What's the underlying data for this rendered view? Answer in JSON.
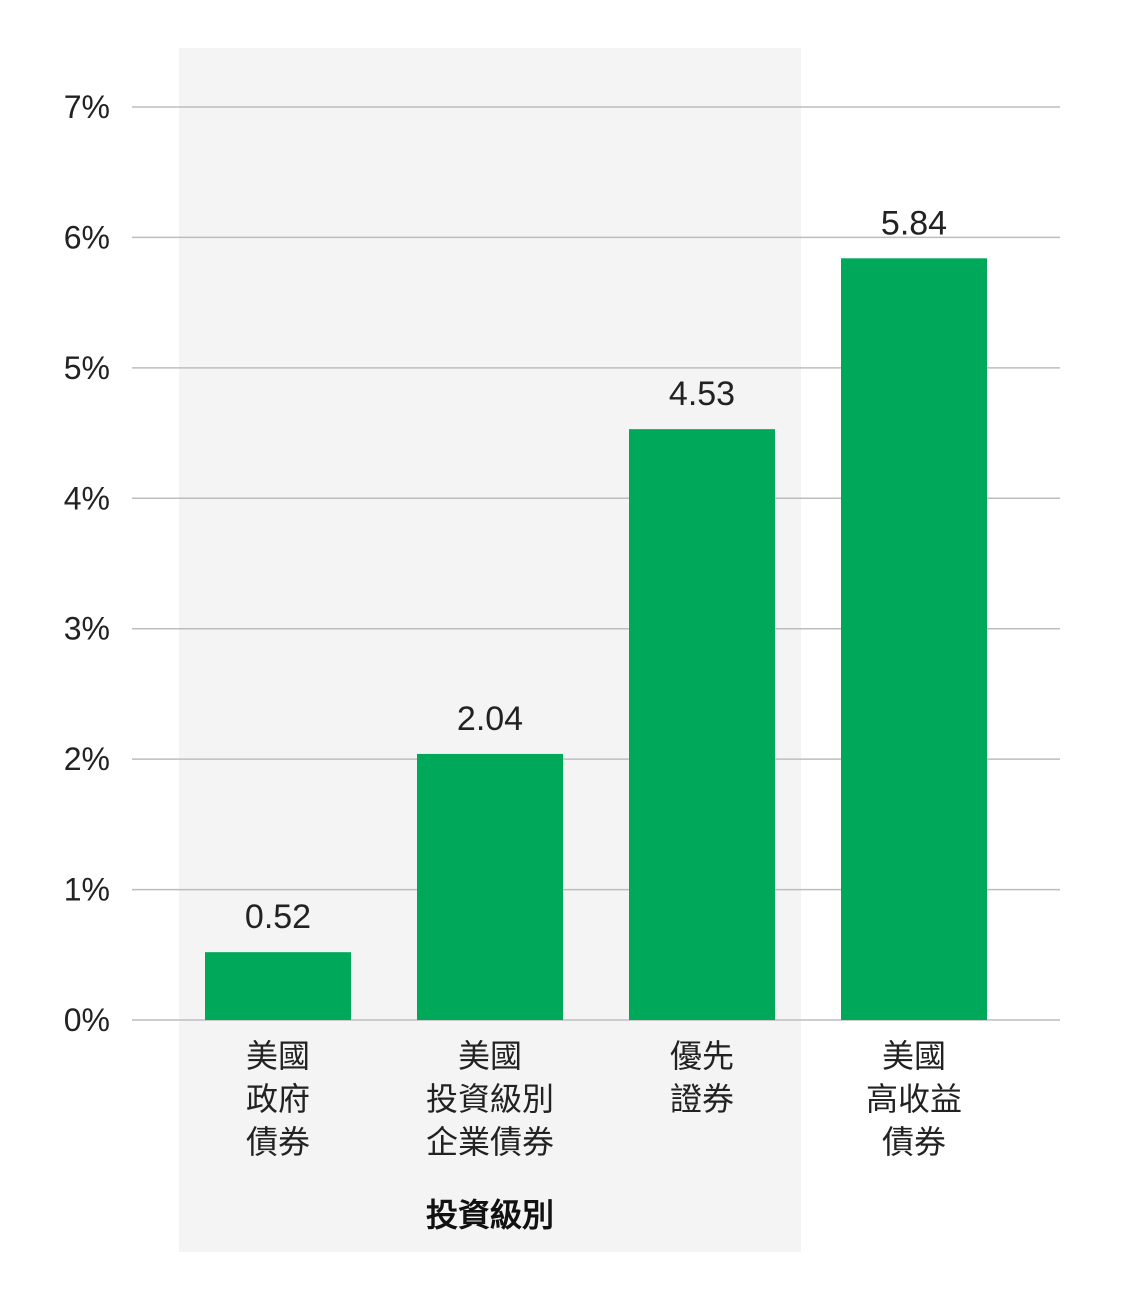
{
  "chart_data": {
    "type": "bar",
    "categories": [
      [
        "美國",
        "政府",
        "債券"
      ],
      [
        "美國",
        "投資級別",
        "企業債券"
      ],
      [
        "優先",
        "證券"
      ],
      [
        "美國",
        "高收益",
        "債券"
      ]
    ],
    "values": [
      0.52,
      2.04,
      4.53,
      5.84
    ],
    "value_labels": [
      "0.52",
      "2.04",
      "4.53",
      "5.84"
    ],
    "ylim": [
      0,
      7
    ],
    "yticks": [
      "0%",
      "1%",
      "2%",
      "3%",
      "4%",
      "5%",
      "6%",
      "7%"
    ],
    "grid": true,
    "highlight_group": {
      "label": "投資級別",
      "categories": [
        0,
        1,
        2
      ]
    },
    "title": "",
    "xlabel": "",
    "ylabel": ""
  },
  "colors": {
    "bar": "#00a859",
    "grid": "#bdbdbd",
    "group_background": "#f4f4f4",
    "text": "#222222"
  }
}
